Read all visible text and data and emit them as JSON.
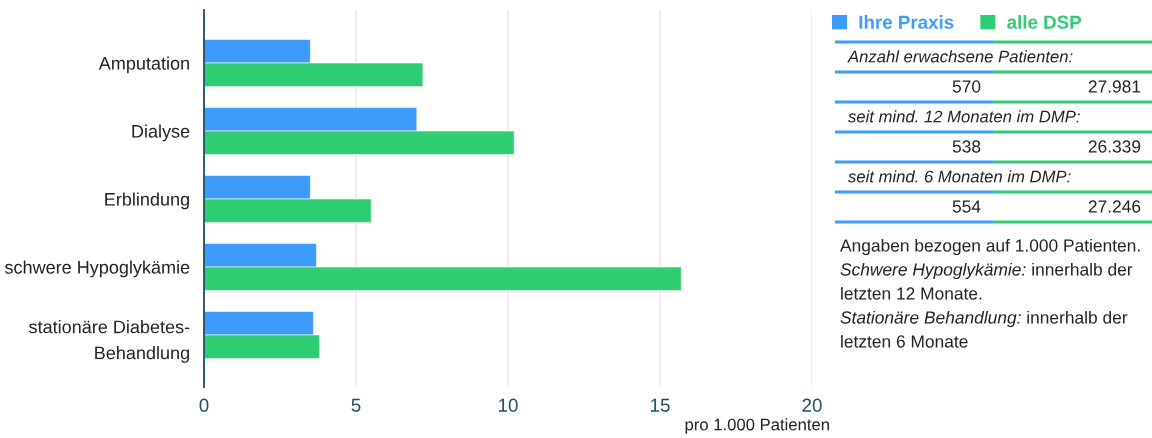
{
  "chart_data": {
    "type": "bar",
    "orientation": "horizontal",
    "categories": [
      "Amputation",
      "Dialyse",
      "Erblindung",
      "schwere Hypoglykämie",
      "stationäre Diabetes-\nBehandlung"
    ],
    "series": [
      {
        "name": "Ihre Praxis",
        "color": "#3e9cf9",
        "values": [
          3.5,
          7.0,
          3.5,
          3.7,
          3.6
        ]
      },
      {
        "name": "alle DSP",
        "color": "#2ecd72",
        "values": [
          7.2,
          10.2,
          5.5,
          15.7,
          3.8
        ]
      }
    ],
    "xlabel": "pro 1.000 Patienten",
    "xlim": [
      0,
      20
    ],
    "xticks": [
      0,
      5,
      10,
      15,
      20
    ],
    "grid": "x",
    "legend": "top right",
    "annotations": [
      "Anzahl erwachsene Patienten:",
      "570",
      "27.981",
      "seit mind. 12 Monaten im DMP:",
      "538",
      "26.339",
      "seit mind. 6 Monaten im DMP:",
      "554",
      "27.246",
      "Angaben bezogen auf 1.000 Patienten.",
      "Schwere Hypoglykämie: innerhalb der letzten 12 Monate.",
      "Stationäre Behandlung: innerhalb der letzten 6 Monate"
    ]
  }
}
